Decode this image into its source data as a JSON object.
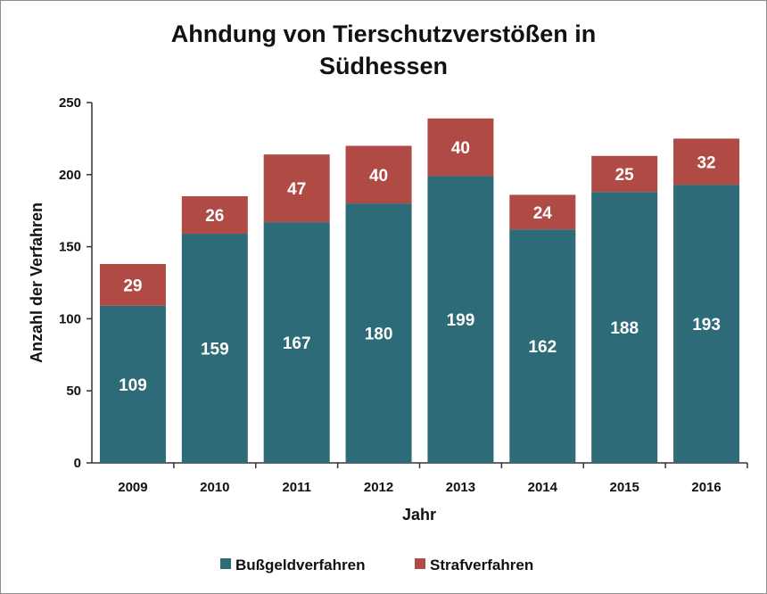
{
  "chart_data": {
    "type": "bar",
    "stacked": true,
    "title_lines": [
      "Ahndung von Tierschutzverstößen in",
      "Südhessen"
    ],
    "xlabel": "Jahr",
    "ylabel": "Anzahl der Verfahren",
    "ylim": [
      0,
      250
    ],
    "yticks": [
      "0",
      "50",
      "100",
      "150",
      "200",
      "250"
    ],
    "grid": false,
    "legend_position": "bottom",
    "categories": [
      "2009",
      "2010",
      "2011",
      "2012",
      "2013",
      "2014",
      "2015",
      "2016"
    ],
    "series": [
      {
        "name": "Bußgeldverfahren",
        "color": "#2c6b77",
        "values": [
          109,
          159,
          167,
          180,
          199,
          162,
          188,
          193
        ]
      },
      {
        "name": "Strafverfahren",
        "color": "#b04a45",
        "values": [
          29,
          26,
          47,
          40,
          40,
          24,
          25,
          32
        ]
      }
    ]
  }
}
